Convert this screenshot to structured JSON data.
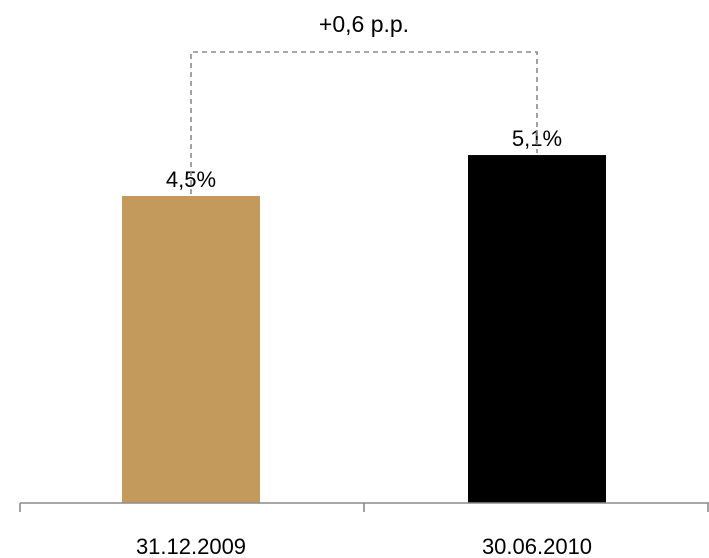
{
  "chart_data": {
    "type": "bar",
    "categories": [
      "31.12.2009",
      "30.06.2010"
    ],
    "values": [
      4.5,
      5.1
    ],
    "value_labels": [
      "4,5%",
      "5,1%"
    ],
    "bar_colors": [
      "#c39a5c",
      "#000000"
    ],
    "annotation": "+0,6 p.p.",
    "ylim": [
      0,
      6.2
    ],
    "grid": false,
    "legend": "none"
  }
}
